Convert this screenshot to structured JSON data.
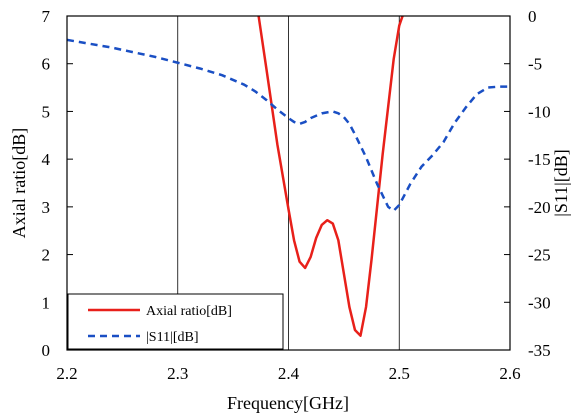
{
  "chart_data": {
    "type": "line",
    "xlabel": "Frequency[GHz]",
    "ylabel_left": "Axial ratio[dB]",
    "ylabel_right": "|S11|[dB]",
    "xlim": [
      2.2,
      2.6
    ],
    "ylim_left": [
      0,
      7
    ],
    "ylim_right": [
      -35,
      0
    ],
    "xticks": [
      "2.2",
      "2.3",
      "2.4",
      "2.5",
      "2.6"
    ],
    "yticks_left": [
      "0",
      "1",
      "2",
      "3",
      "4",
      "5",
      "6",
      "7"
    ],
    "yticks_right": [
      "0",
      "-5",
      "-10",
      "-15",
      "-20",
      "-25",
      "-30",
      "-35"
    ],
    "grid": "vertical lines at x ticks",
    "legend_position": "bottom-left",
    "series": [
      {
        "name": "Axial ratio[dB]",
        "axis": "left",
        "color": "#e8201a",
        "style": "solid",
        "x": [
          2.373,
          2.38,
          2.39,
          2.4,
          2.405,
          2.41,
          2.415,
          2.42,
          2.425,
          2.43,
          2.435,
          2.44,
          2.445,
          2.45,
          2.455,
          2.46,
          2.465,
          2.47,
          2.475,
          2.48,
          2.485,
          2.49,
          2.495,
          2.5,
          2.503
        ],
        "values": [
          7.0,
          5.9,
          4.3,
          2.95,
          2.3,
          1.85,
          1.72,
          1.95,
          2.35,
          2.62,
          2.72,
          2.65,
          2.3,
          1.6,
          0.9,
          0.42,
          0.3,
          0.9,
          1.9,
          3.0,
          4.1,
          5.1,
          6.1,
          6.8,
          7.0
        ]
      },
      {
        "name": "|S11|[dB]",
        "axis": "right",
        "color": "#1a4fc4",
        "style": "dashed",
        "x": [
          2.2,
          2.22,
          2.24,
          2.26,
          2.28,
          2.3,
          2.32,
          2.34,
          2.36,
          2.37,
          2.38,
          2.39,
          2.4,
          2.405,
          2.41,
          2.415,
          2.42,
          2.43,
          2.44,
          2.445,
          2.45,
          2.455,
          2.46,
          2.47,
          2.48,
          2.49,
          2.495,
          2.5,
          2.51,
          2.52,
          2.53,
          2.54,
          2.55,
          2.56,
          2.57,
          2.58,
          2.59,
          2.6
        ],
        "values": [
          -2.5,
          -2.9,
          -3.3,
          -3.8,
          -4.3,
          -4.9,
          -5.5,
          -6.2,
          -7.2,
          -7.9,
          -8.8,
          -9.8,
          -10.7,
          -11.1,
          -11.3,
          -11.1,
          -10.7,
          -10.2,
          -10.0,
          -10.2,
          -10.6,
          -11.3,
          -12.4,
          -14.8,
          -17.6,
          -20.0,
          -20.4,
          -19.8,
          -17.6,
          -15.8,
          -14.6,
          -13.2,
          -11.2,
          -9.6,
          -8.2,
          -7.5,
          -7.4,
          -7.4
        ]
      }
    ]
  }
}
